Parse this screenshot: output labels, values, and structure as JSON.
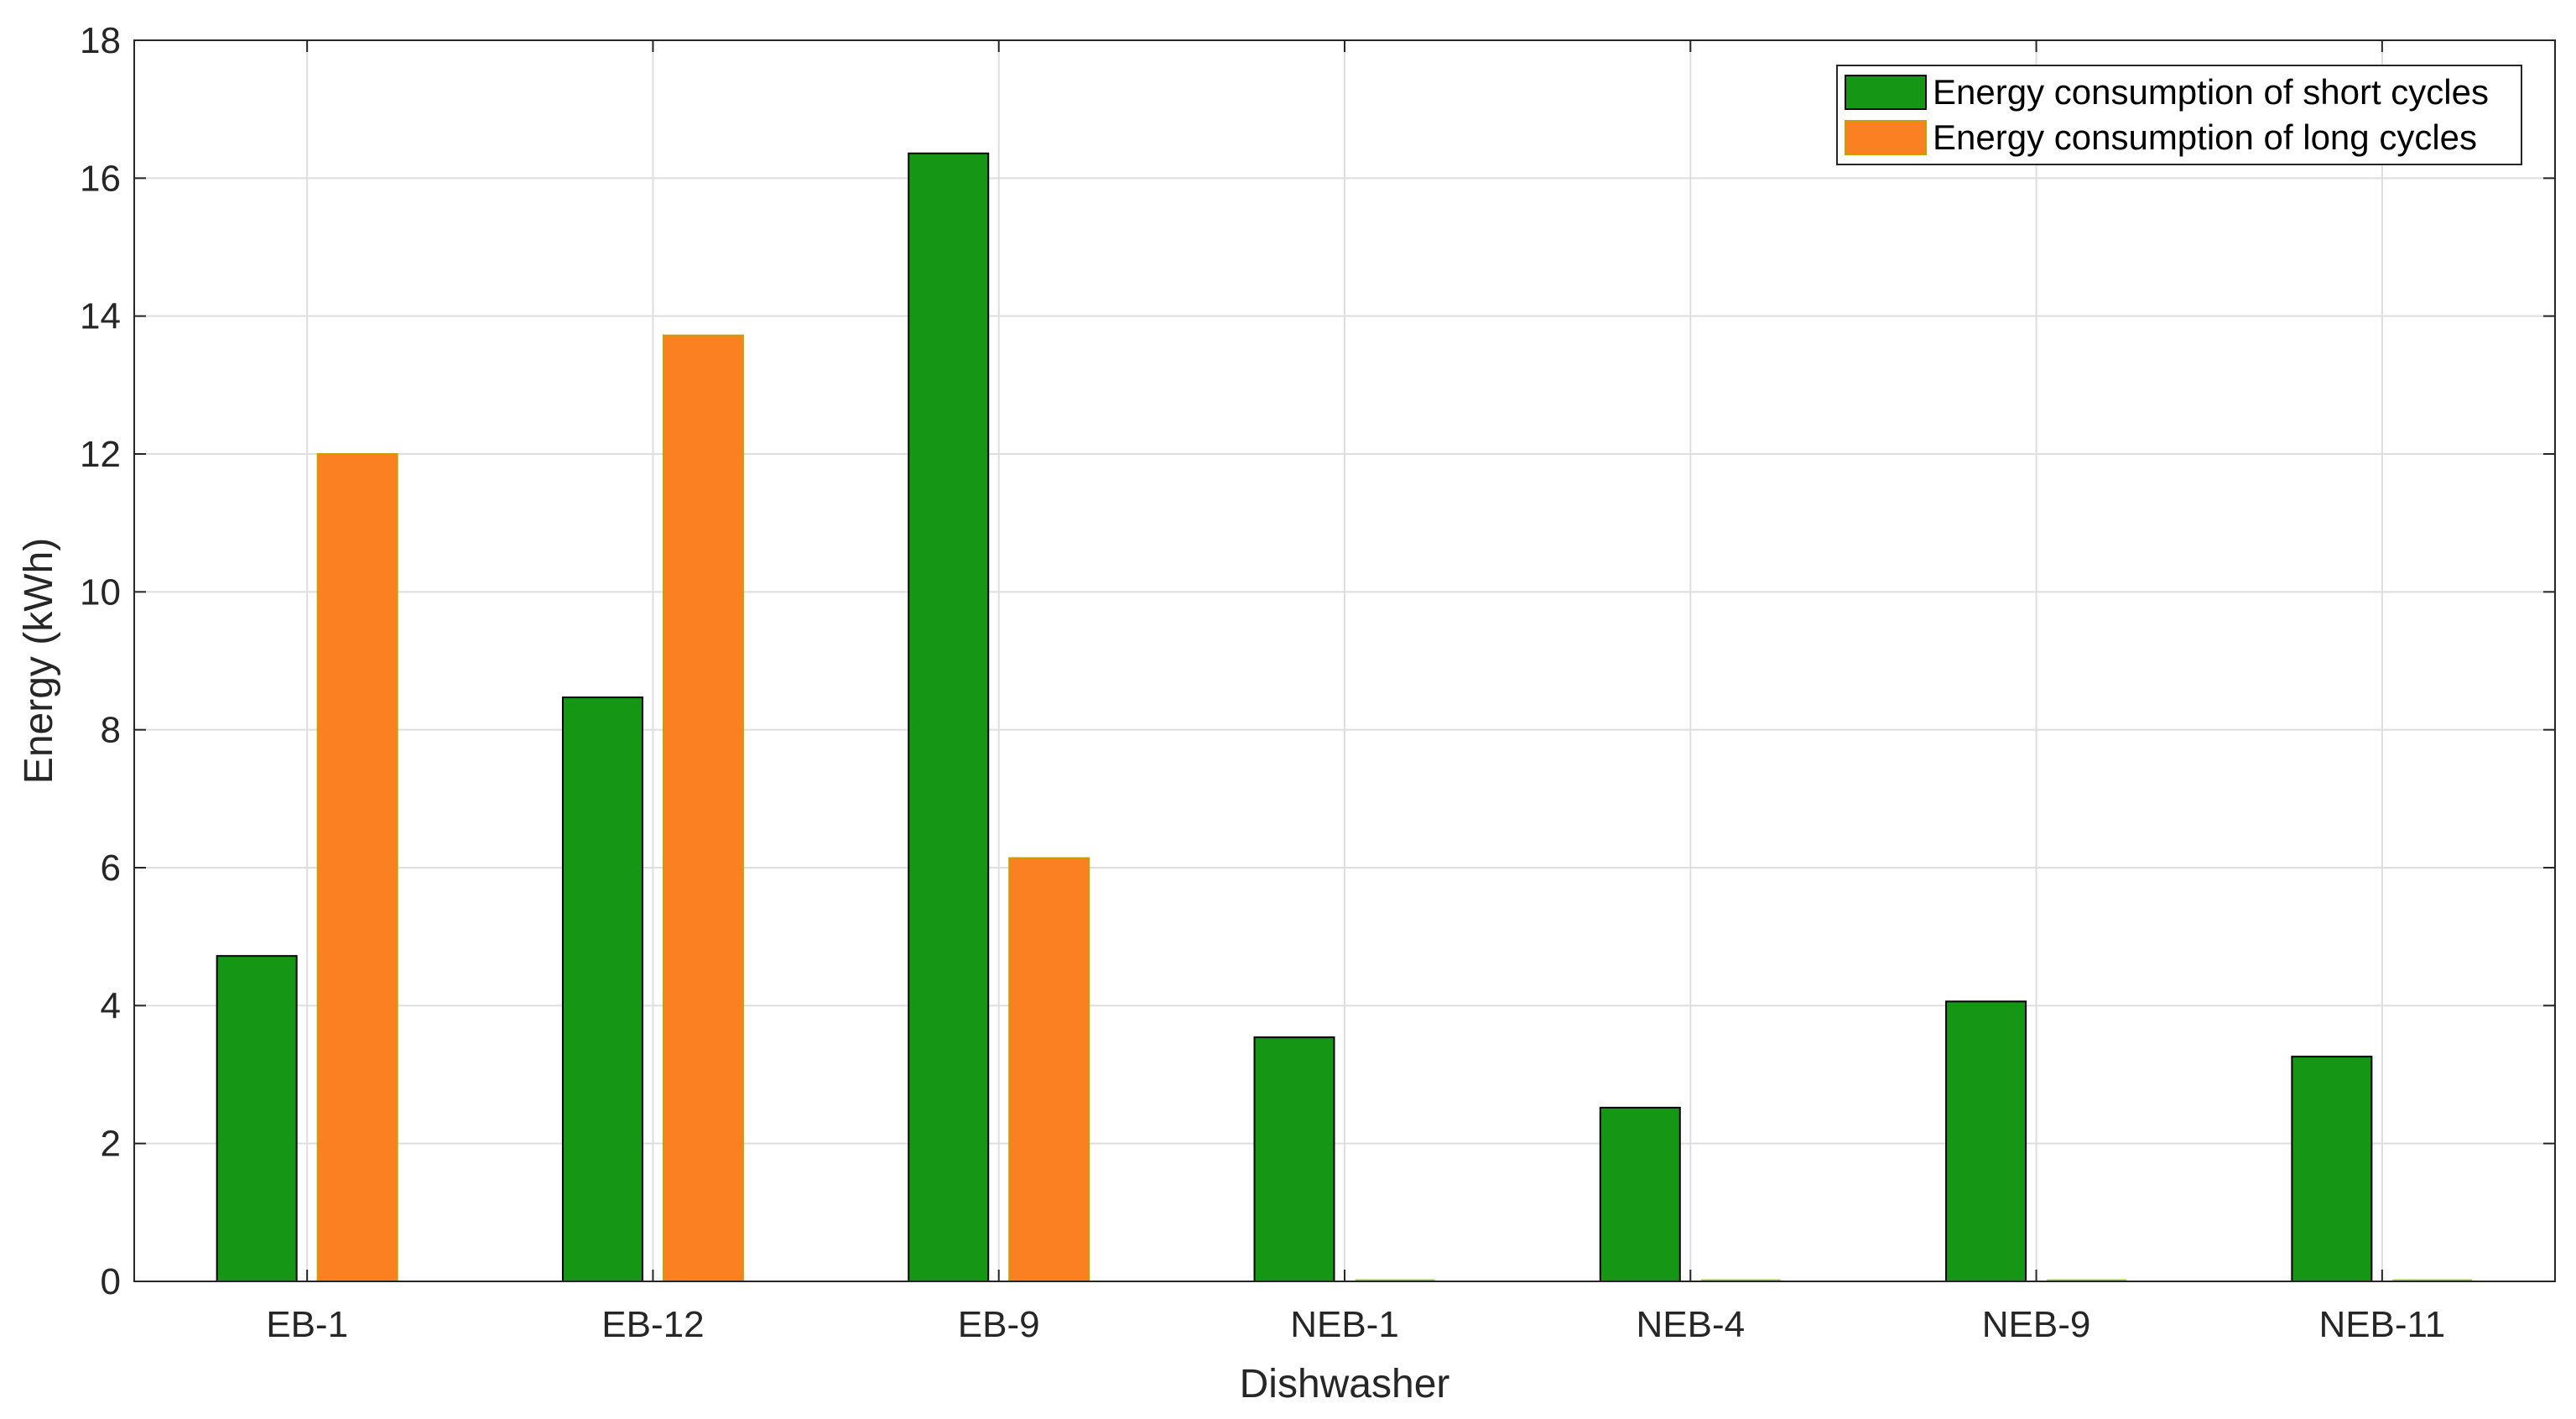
{
  "chart_data": {
    "type": "bar",
    "title": "",
    "xlabel": "Dishwasher",
    "ylabel": "Energy (kWh)",
    "ylim": [
      0,
      18
    ],
    "yticks": [
      0,
      2,
      4,
      6,
      8,
      10,
      12,
      14,
      16,
      18
    ],
    "categories": [
      "EB-1",
      "EB-12",
      "EB-9",
      "NEB-1",
      "NEB-4",
      "NEB-9",
      "NEB-11"
    ],
    "series": [
      {
        "name": "Energy consumption of short cycles",
        "color": "#159615",
        "values": [
          4.72,
          8.47,
          16.36,
          3.54,
          2.52,
          4.06,
          3.26
        ]
      },
      {
        "name": "Energy consumption of long cycles",
        "color": "#fb8022",
        "values": [
          12.0,
          13.72,
          6.14,
          0,
          0,
          0,
          0
        ]
      }
    ],
    "grid": true,
    "legend_position": "top-right"
  }
}
